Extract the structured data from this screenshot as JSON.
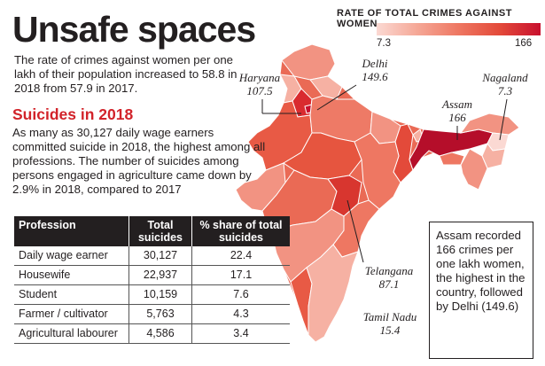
{
  "header": {
    "title": "Unsafe spaces",
    "subtitle": "The rate of crimes against women per one lakh of their population increased to 58.8 in 2018 from 57.9 in 2017."
  },
  "suicides": {
    "heading": "Suicides in 2018",
    "text": "As many as 30,127 daily wage earners committed suicide in 2018, the highest among all professions. The number of suicides among persons engaged in agriculture came down by 2.9% in 2018, compared to 2017"
  },
  "table": {
    "headers": [
      "Profession",
      "Total suicides",
      "% share of total suicides"
    ],
    "rows": [
      {
        "profession": "Daily wage earner",
        "total": "30,127",
        "share": "22.4"
      },
      {
        "profession": "Housewife",
        "total": "22,937",
        "share": "17.1"
      },
      {
        "profession": "Student",
        "total": "10,159",
        "share": "7.6"
      },
      {
        "profession": "Farmer / cultivator",
        "total": "5,763",
        "share": "4.3"
      },
      {
        "profession": "Agricultural labourer",
        "total": "4,586",
        "share": "3.4"
      }
    ]
  },
  "legend": {
    "title": "RATE OF TOTAL CRIMES AGAINST WOMEN",
    "min": "7.3",
    "max": "166",
    "colors": [
      "#fbd9d3",
      "#f5a796",
      "#ee7762",
      "#e34a3a",
      "#c8102e"
    ]
  },
  "map": {
    "labels": {
      "haryana": {
        "name": "Haryana",
        "value": "107.5"
      },
      "delhi": {
        "name": "Delhi",
        "value": "149.6"
      },
      "nagaland": {
        "name": "Nagaland",
        "value": "7.3"
      },
      "assam": {
        "name": "Assam",
        "value": "166"
      },
      "telangana": {
        "name": "Telangana",
        "value": "87.1"
      },
      "tamil_nadu": {
        "name": "Tamil Nadu",
        "value": "15.4"
      }
    }
  },
  "callout": {
    "text": "Assam recorded 166 crimes per one lakh women, the highest in the country, followed by Delhi (149.6)"
  }
}
